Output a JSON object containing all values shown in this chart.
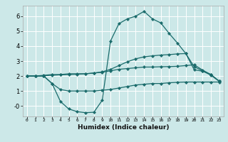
{
  "xlabel": "Humidex (Indice chaleur)",
  "bg_color": "#cce8e8",
  "grid_color": "#ffffff",
  "line_color": "#1a6b6b",
  "x_ticks": [
    0,
    1,
    2,
    3,
    4,
    5,
    6,
    7,
    8,
    9,
    10,
    11,
    12,
    13,
    14,
    15,
    16,
    17,
    18,
    19,
    20,
    21,
    22,
    23
  ],
  "y_ticks": [
    0,
    1,
    2,
    3,
    4,
    5,
    6
  ],
  "y_tick_labels": [
    "-0",
    "1",
    "2",
    "3",
    "4",
    "5",
    "6"
  ],
  "ylim": [
    -0.7,
    6.7
  ],
  "xlim": [
    -0.5,
    23.5
  ],
  "curve1_x": [
    0,
    1,
    2,
    3,
    4,
    5,
    6,
    7,
    8,
    9,
    10,
    11,
    12,
    13,
    14,
    15,
    16,
    17,
    18,
    19,
    20,
    21,
    22,
    23
  ],
  "curve1_y": [
    2.0,
    2.0,
    2.0,
    1.5,
    1.1,
    1.0,
    1.0,
    1.0,
    1.0,
    1.05,
    1.1,
    1.2,
    1.3,
    1.4,
    1.45,
    1.5,
    1.5,
    1.55,
    1.58,
    1.6,
    1.6,
    1.6,
    1.6,
    1.6
  ],
  "curve2_x": [
    0,
    1,
    2,
    3,
    4,
    5,
    6,
    7,
    8,
    9,
    10,
    11,
    12,
    13,
    14,
    15,
    16,
    17,
    18,
    19,
    20,
    21,
    22,
    23
  ],
  "curve2_y": [
    2.0,
    2.0,
    2.05,
    2.1,
    2.1,
    2.15,
    2.15,
    2.15,
    2.2,
    2.25,
    2.35,
    2.45,
    2.5,
    2.55,
    2.6,
    2.6,
    2.62,
    2.63,
    2.65,
    2.7,
    2.75,
    2.4,
    2.1,
    1.65
  ],
  "curve3_x": [
    0,
    1,
    2,
    3,
    4,
    5,
    6,
    7,
    8,
    9,
    10,
    11,
    12,
    13,
    14,
    15,
    16,
    17,
    18,
    19,
    20,
    21,
    22,
    23
  ],
  "curve3_y": [
    2.0,
    2.0,
    2.02,
    2.05,
    2.08,
    2.1,
    2.12,
    2.15,
    2.2,
    2.28,
    2.45,
    2.7,
    2.95,
    3.15,
    3.28,
    3.35,
    3.4,
    3.43,
    3.48,
    3.5,
    2.42,
    2.32,
    2.1,
    1.65
  ],
  "curve4_x": [
    0,
    1,
    2,
    3,
    4,
    5,
    6,
    7,
    8,
    9,
    10,
    11,
    12,
    13,
    14,
    15,
    16,
    17,
    18,
    19,
    20,
    21,
    22,
    23
  ],
  "curve4_y": [
    2.0,
    2.0,
    2.0,
    1.5,
    0.3,
    -0.2,
    -0.38,
    -0.45,
    -0.42,
    0.38,
    4.35,
    5.5,
    5.82,
    6.0,
    6.32,
    5.82,
    5.55,
    4.85,
    4.2,
    3.5,
    2.62,
    2.35,
    2.05,
    1.65
  ]
}
